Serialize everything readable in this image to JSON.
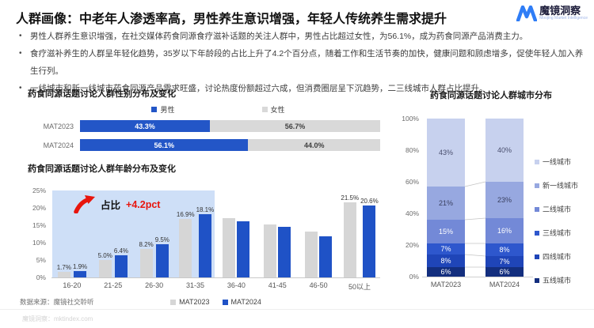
{
  "header": {
    "title": "人群画像：中老年人渗透率高，男性养生意识增强，年轻人传统养生需求提升",
    "logo": {
      "name": "魔镜洞察",
      "tagline": "Moojing Market Intelligence"
    }
  },
  "bullets": [
    "男性人群养生意识增强，在社交媒体药食同源食疗滋补话题的关注人群中，男性占比超过女性，为56.1%，成为药食同源产品消费主力。",
    "食疗滋补养生的人群呈年轻化趋势，35岁以下年龄段的占比上升了4.2个百分点，随着工作和生活节奏的加快，健康问题和顾虑增多，促使年轻人加入养生行列。",
    "一线城市和新一线城市药食同源产品需求旺盛，讨论热度份额超过六成，但消费圈层呈下沉趋势，二三线城市人群占比提升。"
  ],
  "chart_data": [
    {
      "id": "gender",
      "type": "bar",
      "variant": "horizontal-stacked-100",
      "title": "药食同源话题讨论人群性别分布及变化",
      "categories": [
        "MAT2023",
        "MAT2024"
      ],
      "series": [
        {
          "name": "男性",
          "color": "#2356c7",
          "text_color": "#ffffff",
          "values": [
            43.3,
            56.1
          ],
          "labels": [
            "43.3%",
            "56.1%"
          ]
        },
        {
          "name": "女性",
          "color": "#d9d9d9",
          "text_color": "#3f3f3f",
          "values": [
            56.7,
            44.0
          ],
          "labels": [
            "56.7%",
            "44.0%"
          ]
        }
      ],
      "legend_position": "top"
    },
    {
      "id": "age",
      "type": "bar",
      "variant": "grouped-vertical",
      "title": "药食同源话题讨论人群年龄分布及变化",
      "categories": [
        "16-20",
        "21-25",
        "26-30",
        "31-35",
        "36-40",
        "41-45",
        "46-50",
        "50以上"
      ],
      "series": [
        {
          "name": "MAT2023",
          "color": "#d6d6d6",
          "values": [
            1.7,
            5.0,
            8.2,
            16.9,
            17.0,
            15.2,
            13.2,
            21.5
          ],
          "labels": [
            "1.7%",
            "5.0%",
            "8.2%",
            "16.9%",
            "",
            "",
            "",
            "21.5%"
          ]
        },
        {
          "name": "MAT2024",
          "color": "#1f52c6",
          "values": [
            1.9,
            6.4,
            9.5,
            18.1,
            16.2,
            14.6,
            11.9,
            20.6
          ],
          "labels": [
            "1.9%",
            "6.4%",
            "9.5%",
            "18.1%",
            "",
            "",
            "",
            "20.6%"
          ]
        }
      ],
      "ylim": [
        0,
        25
      ],
      "yticks": [
        "0%",
        "5%",
        "10%",
        "15%",
        "20%",
        "25%"
      ],
      "highlight_categories": [
        "16-20",
        "21-25",
        "26-30",
        "31-35"
      ],
      "annotation": {
        "label": "占比",
        "value": "+4.2pct",
        "value_color": "#e8150d"
      },
      "legend_position": "bottom"
    },
    {
      "id": "city",
      "type": "bar",
      "variant": "vertical-stacked-100",
      "title": "药食同源话题讨论人群城市分布",
      "categories": [
        "MAT2023",
        "MAT2024"
      ],
      "series": [
        {
          "name": "一线城市",
          "color": "#c7d1ee",
          "text_color": "#4a4f6e",
          "values": [
            43,
            40
          ],
          "labels": [
            "43%",
            "40%"
          ]
        },
        {
          "name": "新一线城市",
          "color": "#97a8e0",
          "text_color": "#3a4060",
          "values": [
            21,
            23
          ],
          "labels": [
            "21%",
            "23%"
          ]
        },
        {
          "name": "二线城市",
          "color": "#7389d7",
          "text_color": "#ffffff",
          "values": [
            15,
            16
          ],
          "labels": [
            "15%",
            "16%"
          ]
        },
        {
          "name": "三线城市",
          "color": "#2e57cd",
          "text_color": "#ffffff",
          "values": [
            7,
            8
          ],
          "labels": [
            "7%",
            "8%"
          ]
        },
        {
          "name": "四线城市",
          "color": "#1f45b8",
          "text_color": "#ffffff",
          "values": [
            8,
            7
          ],
          "labels": [
            "8%",
            "7%"
          ]
        },
        {
          "name": "五线城市",
          "color": "#132e7e",
          "text_color": "#ffffff",
          "values": [
            6,
            6
          ],
          "labels": [
            "6%",
            "6%"
          ]
        }
      ],
      "yticks": [
        "0%",
        "20%",
        "40%",
        "60%",
        "80%",
        "100%"
      ],
      "legend_position": "right"
    }
  ],
  "footer": {
    "source": "数据来源：魔镜社交聆听",
    "site": "魔镜洞察：mktindex.com"
  }
}
